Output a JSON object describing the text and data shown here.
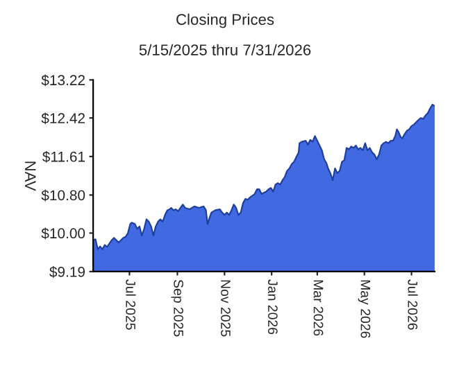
{
  "chart_data": {
    "type": "area",
    "title": "Closing Prices",
    "subtitle": "5/15/2025 thru 7/31/2026",
    "ylabel": "NAV",
    "color": "#4169e1",
    "grid": false,
    "legend": false,
    "x": [
      "2025-05-15",
      "2025-05-18",
      "2025-05-21",
      "2025-05-24",
      "2025-05-27",
      "2025-05-30",
      "2025-06-02",
      "2025-06-08",
      "2025-06-11",
      "2025-06-17",
      "2025-06-23",
      "2025-06-26",
      "2025-06-29",
      "2025-07-02",
      "2025-07-04",
      "2025-07-08",
      "2025-07-11",
      "2025-07-14",
      "2025-07-17",
      "2025-07-20",
      "2025-07-23",
      "2025-07-26",
      "2025-07-29",
      "2025-08-01",
      "2025-08-04",
      "2025-08-07",
      "2025-08-10",
      "2025-08-13",
      "2025-08-16",
      "2025-08-19",
      "2025-08-22",
      "2025-08-24",
      "2025-08-27",
      "2025-08-30",
      "2025-09-02",
      "2025-09-05",
      "2025-09-08",
      "2025-09-11",
      "2025-09-17",
      "2025-09-23",
      "2025-09-29",
      "2025-10-05",
      "2025-10-08",
      "2025-10-10",
      "2025-10-12",
      "2025-10-15",
      "2025-10-20",
      "2025-10-26",
      "2025-10-29",
      "2025-11-01",
      "2025-11-04",
      "2025-11-07",
      "2025-11-10",
      "2025-11-13",
      "2025-11-16",
      "2025-11-19",
      "2025-11-22",
      "2025-11-25",
      "2025-11-28",
      "2025-12-01",
      "2025-12-04",
      "2025-12-10",
      "2025-12-13",
      "2025-12-16",
      "2025-12-19",
      "2025-12-22",
      "2025-12-25",
      "2025-12-28",
      "2025-12-31",
      "2026-01-03",
      "2026-01-06",
      "2026-01-09",
      "2026-01-12",
      "2026-01-15",
      "2026-01-18",
      "2026-01-21",
      "2026-01-24",
      "2026-01-27",
      "2026-01-30",
      "2026-02-02",
      "2026-02-05",
      "2026-02-06",
      "2026-02-09",
      "2026-02-14",
      "2026-02-17",
      "2026-02-20",
      "2026-02-23",
      "2026-02-26",
      "2026-03-01",
      "2026-03-04",
      "2026-03-07",
      "2026-03-10",
      "2026-03-13",
      "2026-03-15",
      "2026-03-18",
      "2026-03-21",
      "2026-03-24",
      "2026-03-27",
      "2026-03-30",
      "2026-04-02",
      "2026-04-05",
      "2026-04-08",
      "2026-04-11",
      "2026-04-14",
      "2026-04-17",
      "2026-04-20",
      "2026-04-23",
      "2026-04-26",
      "2026-04-29",
      "2026-05-02",
      "2026-05-05",
      "2026-05-08",
      "2026-05-11",
      "2026-05-14",
      "2026-05-17",
      "2026-05-20",
      "2026-05-23",
      "2026-05-26",
      "2026-05-29",
      "2026-06-01",
      "2026-06-04",
      "2026-06-07",
      "2026-06-10",
      "2026-06-12",
      "2026-06-14",
      "2026-06-17",
      "2026-06-19",
      "2026-06-22",
      "2026-06-25",
      "2026-06-28",
      "2026-07-01",
      "2026-07-04",
      "2026-07-07",
      "2026-07-10",
      "2026-07-13",
      "2026-07-16",
      "2026-07-19",
      "2026-07-22",
      "2026-07-25",
      "2026-07-28",
      "2026-07-31"
    ],
    "values": [
      9.85,
      9.87,
      9.66,
      9.72,
      9.66,
      9.75,
      9.71,
      9.85,
      9.9,
      9.8,
      9.9,
      9.92,
      10.0,
      10.19,
      10.22,
      10.19,
      10.09,
      10.14,
      9.95,
      10.09,
      10.29,
      10.24,
      10.14,
      9.95,
      10.14,
      10.24,
      10.29,
      10.24,
      10.38,
      10.48,
      10.5,
      10.53,
      10.48,
      10.5,
      10.46,
      10.53,
      10.6,
      10.53,
      10.5,
      10.56,
      10.53,
      10.56,
      10.48,
      10.19,
      10.29,
      10.43,
      10.48,
      10.5,
      10.43,
      10.38,
      10.43,
      10.38,
      10.48,
      10.6,
      10.53,
      10.38,
      10.43,
      10.63,
      10.72,
      10.7,
      10.75,
      10.82,
      10.92,
      10.92,
      10.82,
      10.85,
      10.87,
      10.92,
      10.95,
      10.87,
      11.02,
      11.05,
      11.02,
      11.11,
      11.18,
      11.31,
      11.36,
      11.45,
      11.5,
      11.6,
      11.7,
      11.89,
      11.92,
      11.94,
      11.86,
      11.96,
      11.92,
      12.04,
      11.94,
      11.84,
      11.74,
      11.55,
      11.47,
      11.36,
      11.26,
      11.11,
      11.36,
      11.26,
      11.31,
      11.5,
      11.53,
      11.79,
      11.76,
      11.82,
      11.79,
      11.84,
      11.76,
      11.79,
      11.74,
      11.89,
      11.74,
      11.79,
      11.7,
      11.65,
      11.55,
      11.65,
      11.84,
      11.89,
      11.92,
      11.89,
      11.94,
      11.94,
      12.04,
      12.18,
      12.13,
      12.02,
      11.99,
      12.08,
      12.15,
      12.18,
      12.25,
      12.28,
      12.33,
      12.38,
      12.42,
      12.4,
      12.47,
      12.52,
      12.62,
      12.7,
      12.67
    ],
    "xlim": [
      "2025-05-15",
      "2026-07-31"
    ],
    "xticks": [
      {
        "value": "2025-07-01",
        "label": "Jul 2025"
      },
      {
        "value": "2025-09-01",
        "label": "Sep 2025"
      },
      {
        "value": "2025-11-01",
        "label": "Nov 2025"
      },
      {
        "value": "2026-01-01",
        "label": "Jan 2026"
      },
      {
        "value": "2026-03-01",
        "label": "Mar 2026"
      },
      {
        "value": "2026-05-01",
        "label": "May 2026"
      },
      {
        "value": "2026-07-01",
        "label": "Jul 2026"
      }
    ],
    "ylim": [
      9.19,
      13.22
    ],
    "yticks": [
      {
        "value": 9.19,
        "label": "$9.19"
      },
      {
        "value": 10.0,
        "label": "$10.00"
      },
      {
        "value": 10.8,
        "label": "$10.80"
      },
      {
        "value": 11.61,
        "label": "$11.61"
      },
      {
        "value": 12.42,
        "label": "$12.42"
      },
      {
        "value": 13.22,
        "label": "$13.22"
      }
    ]
  }
}
